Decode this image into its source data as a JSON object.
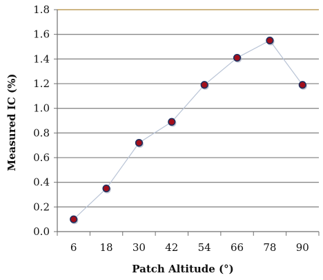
{
  "chart_data": {
    "type": "line",
    "title": "",
    "xlabel": "Patch Altitude (°)",
    "ylabel": "Measured IC (%)",
    "categories": [
      "6",
      "18",
      "30",
      "42",
      "54",
      "66",
      "78",
      "90"
    ],
    "ylim": [
      0,
      1.8
    ],
    "yticks": [
      "0.0",
      "0.2",
      "0.4",
      "0.6",
      "0.8",
      "1.0",
      "1.2",
      "1.4",
      "1.6",
      "1.8"
    ],
    "series": [
      {
        "values": [
          0.1,
          0.35,
          0.72,
          0.89,
          1.19,
          1.41,
          1.55,
          1.19
        ]
      }
    ],
    "grid": "horizontal",
    "colors": {
      "gridline": "#8a8a8a",
      "top_gridline": "#b08a3a",
      "axis": "#6f6f6f",
      "line": "#b9c4d6",
      "marker_fill": "#a30f1b",
      "marker_stroke": "#1f2f5e"
    }
  }
}
